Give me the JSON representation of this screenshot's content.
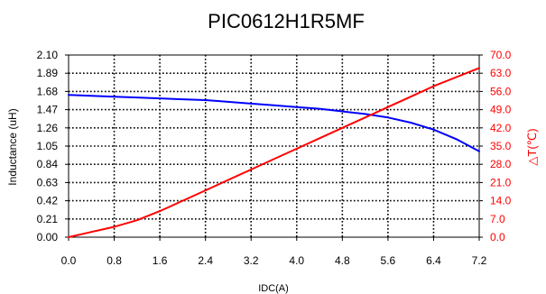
{
  "chart_data": {
    "type": "line",
    "title": "PIC0612H1R5MF",
    "xlabel": "IDC(A)",
    "ylabel_left": "Inductance (uH)",
    "ylabel_right": "△T(℃)",
    "xlim": [
      0,
      7.2
    ],
    "ylim_left": [
      0,
      2.1
    ],
    "ylim_right": [
      0,
      70
    ],
    "x_ticks": [
      "0.0",
      "0.8",
      "1.6",
      "2.4",
      "3.2",
      "4.0",
      "4.8",
      "5.6",
      "6.4",
      "7.2"
    ],
    "y_left_ticks": [
      "0.00",
      "0.21",
      "0.42",
      "0.63",
      "0.84",
      "1.05",
      "1.26",
      "1.47",
      "1.68",
      "1.89",
      "2.10"
    ],
    "y_right_ticks": [
      "0.0",
      "7.0",
      "14.0",
      "21.0",
      "28.0",
      "35.0",
      "42.0",
      "49.0",
      "56.0",
      "63.0",
      "70.0"
    ],
    "grid": true,
    "series": [
      {
        "axis": "left",
        "color": "#0000ff",
        "x": [
          0.0,
          0.4,
          0.8,
          1.2,
          1.6,
          2.0,
          2.4,
          2.8,
          3.2,
          3.6,
          4.0,
          4.4,
          4.8,
          5.2,
          5.6,
          6.0,
          6.4,
          6.8,
          7.2
        ],
        "values": [
          1.64,
          1.63,
          1.62,
          1.61,
          1.6,
          1.59,
          1.58,
          1.56,
          1.54,
          1.52,
          1.5,
          1.48,
          1.45,
          1.42,
          1.38,
          1.32,
          1.24,
          1.13,
          0.99
        ]
      },
      {
        "axis": "right",
        "color": "#ff0000",
        "x": [
          0.0,
          0.4,
          0.8,
          1.2,
          1.6,
          2.0,
          2.4,
          2.8,
          3.2,
          3.6,
          4.0,
          4.4,
          4.8,
          5.2,
          5.6,
          6.0,
          6.4,
          6.8,
          7.2
        ],
        "values": [
          0.0,
          2.0,
          4.0,
          6.5,
          10.0,
          14.0,
          18.0,
          22.0,
          26.0,
          30.0,
          34.0,
          38.0,
          42.0,
          46.0,
          50.0,
          54.0,
          58.0,
          61.5,
          65.0
        ]
      }
    ]
  }
}
